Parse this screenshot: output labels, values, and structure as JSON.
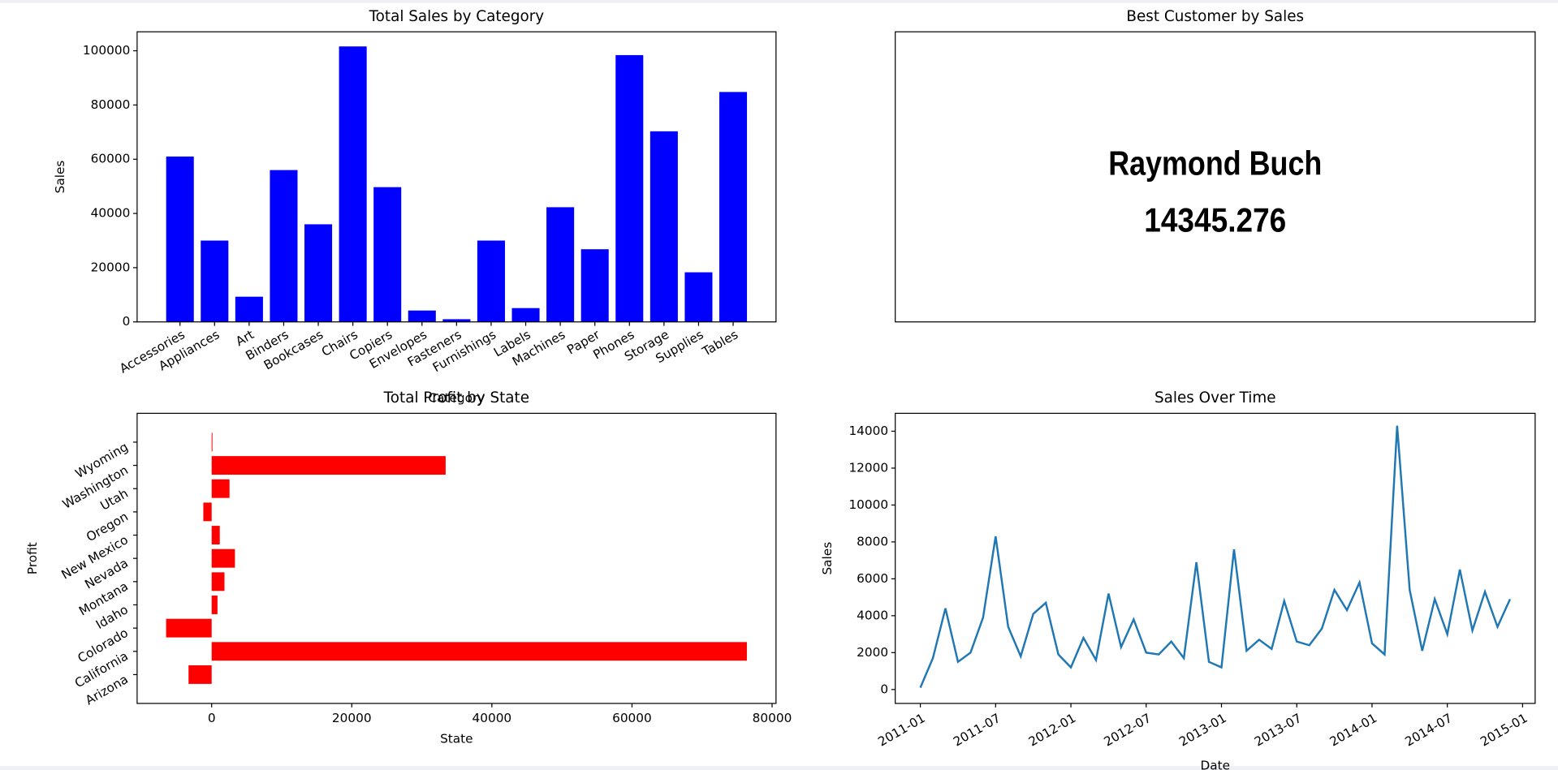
{
  "chart_data": [
    {
      "type": "bar",
      "title": "Total Sales by Category",
      "xlabel": "Category",
      "ylabel": "Sales",
      "categories": [
        "Accessories",
        "Appliances",
        "Art",
        "Binders",
        "Bookcases",
        "Chairs",
        "Copiers",
        "Envelopes",
        "Fasteners",
        "Furnishings",
        "Labels",
        "Machines",
        "Paper",
        "Phones",
        "Storage",
        "Supplies",
        "Tables"
      ],
      "values": [
        61000,
        30000,
        9300,
        56000,
        36000,
        101600,
        49700,
        4200,
        1000,
        30000,
        5100,
        42300,
        26800,
        98400,
        70300,
        18300,
        84800
      ],
      "color": "#0000ff",
      "ylim": [
        0,
        107000
      ],
      "yticks": [
        0,
        20000,
        40000,
        60000,
        80000,
        100000
      ]
    },
    {
      "type": "text",
      "title": "Best Customer by Sales",
      "name": "Raymond Buch",
      "value": 14345.276,
      "name_color": "#0000ff",
      "value_color": "#008000"
    },
    {
      "type": "barh",
      "title": "Total Profit by State",
      "xlabel": "State",
      "ylabel": "Profit",
      "categories": [
        "Arizona",
        "California",
        "Colorado",
        "Idaho",
        "Montana",
        "Nevada",
        "New Mexico",
        "Oregon",
        "Utah",
        "Washington",
        "Wyoming"
      ],
      "values": [
        -3300,
        76400,
        -6500,
        830,
        1830,
        3320,
        1160,
        -1190,
        2550,
        33400,
        100
      ],
      "color": "#ff0000",
      "xlim": [
        -10640,
        80560
      ],
      "xticks": [
        0,
        20000,
        40000,
        60000,
        80000
      ]
    },
    {
      "type": "line",
      "title": "Sales Over Time",
      "xlabel": "Date",
      "ylabel": "Sales",
      "x": [
        "2011-01",
        "2011-02",
        "2011-03",
        "2011-04",
        "2011-05",
        "2011-06",
        "2011-07",
        "2011-08",
        "2011-09",
        "2011-10",
        "2011-11",
        "2011-12",
        "2012-01",
        "2012-02",
        "2012-03",
        "2012-04",
        "2012-05",
        "2012-06",
        "2012-07",
        "2012-08",
        "2012-09",
        "2012-10",
        "2012-11",
        "2012-12",
        "2013-01",
        "2013-02",
        "2013-03",
        "2013-04",
        "2013-05",
        "2013-06",
        "2013-07",
        "2013-08",
        "2013-09",
        "2013-10",
        "2013-11",
        "2013-12",
        "2014-01",
        "2014-02",
        "2014-03",
        "2014-04",
        "2014-05",
        "2014-06",
        "2014-07",
        "2014-08",
        "2014-09",
        "2014-10",
        "2014-11",
        "2014-12"
      ],
      "values": [
        100,
        1700,
        4400,
        1500,
        2000,
        3900,
        8300,
        3400,
        1800,
        4100,
        4700,
        1900,
        1200,
        2800,
        1600,
        5200,
        2300,
        3800,
        2000,
        1900,
        2600,
        1700,
        6900,
        1500,
        1200,
        7600,
        2100,
        2700,
        2200,
        4800,
        2600,
        2400,
        3300,
        5400,
        4300,
        5800,
        2500,
        1900,
        14300,
        5400,
        2100,
        4900,
        3000,
        6500,
        3200,
        5300,
        3400,
        4900
      ],
      "color": "#1f77b4",
      "xlim": [
        "2010-11",
        "2015-02"
      ],
      "ylim": [
        -754,
        14970
      ],
      "yticks": [
        0,
        2000,
        4000,
        6000,
        8000,
        10000,
        12000,
        14000
      ],
      "xticks": [
        "2011-01",
        "2011-07",
        "2012-01",
        "2012-07",
        "2013-01",
        "2013-07",
        "2014-01",
        "2014-07",
        "2015-01"
      ]
    }
  ]
}
